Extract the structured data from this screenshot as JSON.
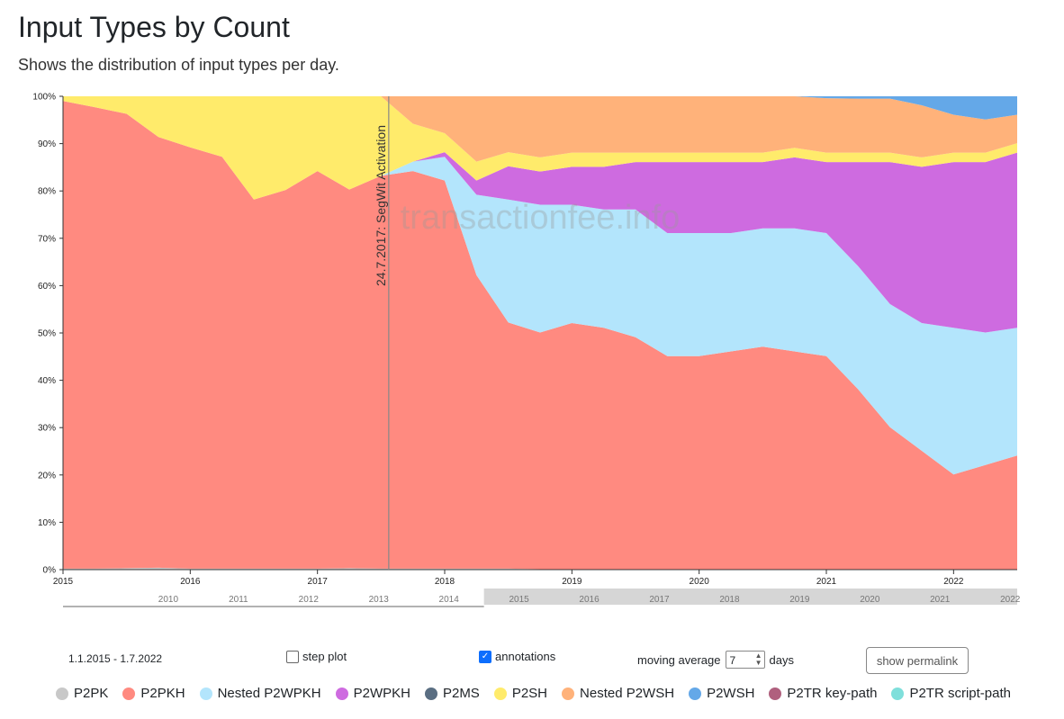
{
  "page": {
    "title": "Input Types by Count",
    "subtitle": "Shows the distribution of input types per day."
  },
  "controls": {
    "date_range": "1.1.2015 - 1.7.2022",
    "step_plot_label": "step plot",
    "step_plot_checked": false,
    "annotations_label": "annotations",
    "annotations_checked": true,
    "moving_average_label": "moving average",
    "moving_average_value": "7",
    "moving_average_unit": "days",
    "permalink_label": "show permalink"
  },
  "watermark": "transactionfee.info",
  "annotation": {
    "x": 2017.56,
    "label": "24.7.2017: SegWit Activation"
  },
  "colors": {
    "P2PK": "#c8c8c8",
    "P2PKH": "#ff8a80",
    "Nested P2WPKH": "#b3e5fc",
    "P2WPKH": "#ce6be0",
    "P2MS": "#5a6e82",
    "P2SH": "#ffeb6b",
    "Nested P2WSH": "#ffb27a",
    "P2WSH": "#64a8e8",
    "P2TR key-path": "#b0607e",
    "P2TR script-path": "#7fdfdb"
  },
  "chart_data": {
    "type": "area",
    "stacked": true,
    "x_range": [
      2015.0,
      2022.5
    ],
    "ylim": [
      0,
      100
    ],
    "y_ticks": [
      "0%",
      "10%",
      "20%",
      "30%",
      "40%",
      "50%",
      "60%",
      "70%",
      "80%",
      "90%",
      "100%"
    ],
    "x_ticks": [
      "2015",
      "2016",
      "2017",
      "2018",
      "2019",
      "2020",
      "2021",
      "2022"
    ],
    "x": [
      2015.0,
      2015.25,
      2015.5,
      2015.75,
      2016.0,
      2016.25,
      2016.5,
      2016.75,
      2017.0,
      2017.25,
      2017.5,
      2017.75,
      2018.0,
      2018.25,
      2018.5,
      2018.75,
      2019.0,
      2019.25,
      2019.5,
      2019.75,
      2020.0,
      2020.25,
      2020.5,
      2020.75,
      2021.0,
      2021.25,
      2021.5,
      2021.75,
      2022.0,
      2022.25,
      2022.5
    ],
    "series": [
      {
        "name": "P2PK",
        "values": [
          0.2,
          0.2,
          0.3,
          0.4,
          0.2,
          0.2,
          0.2,
          0.2,
          0.2,
          0.3,
          0.2,
          0.2,
          0.2,
          0.2,
          0.2,
          0.1,
          0.1,
          0.1,
          0.1,
          0.1,
          0.1,
          0.1,
          0.1,
          0.1,
          0.1,
          0.1,
          0.1,
          0.1,
          0.1,
          0.1,
          0.1
        ]
      },
      {
        "name": "P2PKH",
        "values": [
          98.8,
          97.5,
          96,
          91,
          89,
          87,
          78,
          80,
          84,
          80,
          83,
          84,
          82,
          62,
          52,
          50,
          52,
          51,
          49,
          45,
          45,
          46,
          47,
          46,
          45,
          38,
          30,
          25,
          20,
          22,
          24
        ]
      },
      {
        "name": "Nested P2WPKH",
        "values": [
          0,
          0,
          0,
          0,
          0,
          0,
          0,
          0,
          0,
          0,
          0,
          2,
          5,
          17,
          26,
          27,
          25,
          25,
          27,
          26,
          26,
          25,
          25,
          26,
          26,
          26,
          26,
          27,
          31,
          28,
          27
        ]
      },
      {
        "name": "P2WPKH",
        "values": [
          0,
          0,
          0,
          0,
          0,
          0,
          0,
          0,
          0,
          0,
          0,
          0,
          1,
          3,
          7,
          7,
          8,
          9,
          10,
          15,
          15,
          15,
          14,
          15,
          15,
          22,
          30,
          33,
          35,
          36,
          37
        ]
      },
      {
        "name": "P2MS",
        "values": [
          0,
          0,
          0,
          0,
          0,
          0,
          0,
          0,
          0,
          0,
          0,
          0,
          0,
          0,
          0,
          0,
          0,
          0,
          0,
          0,
          0,
          0,
          0,
          0,
          0,
          0,
          0,
          0,
          0,
          0,
          0
        ]
      },
      {
        "name": "P2SH",
        "values": [
          1,
          2.3,
          3.7,
          8.6,
          10.8,
          12.8,
          21.8,
          19.8,
          15.8,
          19.7,
          16.8,
          8,
          4,
          4,
          3,
          3,
          3,
          3,
          2,
          2,
          2,
          2,
          2,
          2,
          2,
          2,
          2,
          2,
          2,
          2,
          2
        ]
      },
      {
        "name": "Nested P2WSH",
        "values": [
          0,
          0,
          0,
          0,
          0,
          0,
          0,
          0,
          0,
          0,
          0,
          5.8,
          7.8,
          13.8,
          11.8,
          12.9,
          11.9,
          11.9,
          11.9,
          11.9,
          11.9,
          11.9,
          11.9,
          10.9,
          11.5,
          11.4,
          11.4,
          11,
          8,
          7,
          6
        ]
      },
      {
        "name": "P2WSH",
        "values": [
          0,
          0,
          0,
          0,
          0,
          0,
          0,
          0,
          0,
          0,
          0,
          0,
          0,
          0,
          0,
          0,
          0,
          0,
          0,
          0,
          0,
          0,
          0,
          0,
          0.4,
          0.5,
          0.5,
          1.9,
          3.9,
          4.9,
          3.9
        ]
      },
      {
        "name": "P2TR key-path",
        "values": [
          0,
          0,
          0,
          0,
          0,
          0,
          0,
          0,
          0,
          0,
          0,
          0,
          0,
          0,
          0,
          0,
          0,
          0,
          0,
          0,
          0,
          0,
          0,
          0,
          0,
          0,
          0,
          0,
          0,
          0.05,
          0.1
        ]
      },
      {
        "name": "P2TR script-path",
        "values": [
          0,
          0,
          0,
          0,
          0,
          0,
          0,
          0,
          0,
          0,
          0,
          0,
          0,
          0,
          0,
          0,
          0,
          0,
          0,
          0,
          0,
          0,
          0,
          0,
          0,
          0,
          0,
          0,
          0,
          0.02,
          0.05
        ]
      }
    ],
    "navigator": {
      "x_range": [
        2009,
        2022.6
      ],
      "selected": [
        2015.0,
        2022.5
      ],
      "ticks": [
        "2010",
        "2011",
        "2012",
        "2013",
        "2014",
        "2015",
        "2016",
        "2017",
        "2018",
        "2019",
        "2020",
        "2021",
        "2022"
      ]
    }
  }
}
